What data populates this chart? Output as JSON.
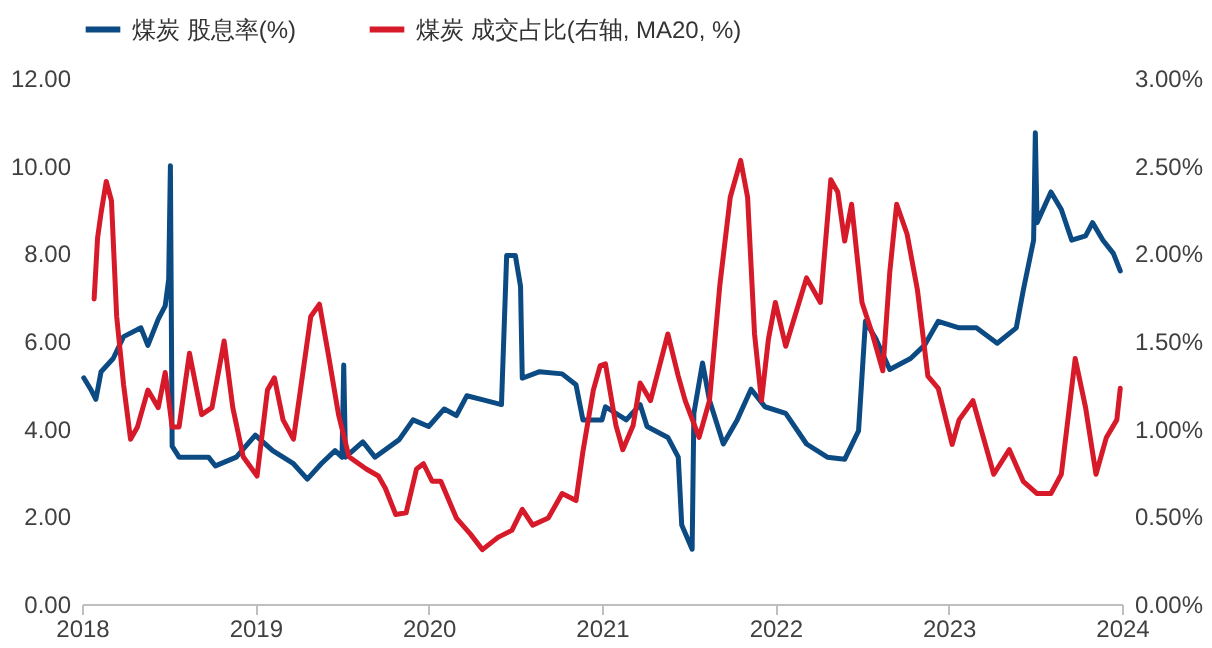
{
  "chart_data": {
    "type": "line",
    "legend": "top",
    "grid": false,
    "xlim": [
      2018,
      2024
    ],
    "xticks": [
      2018,
      2019,
      2020,
      2021,
      2022,
      2023,
      2024
    ],
    "ylim": [
      0,
      12
    ],
    "yticks": [
      {
        "value": 0,
        "label": "0.00"
      },
      {
        "value": 2,
        "label": "2.00"
      },
      {
        "value": 4,
        "label": "4.00"
      },
      {
        "value": 6,
        "label": "6.00"
      },
      {
        "value": 8,
        "label": "8.00"
      },
      {
        "value": 10,
        "label": "10.00"
      },
      {
        "value": 12,
        "label": "12.00"
      }
    ],
    "y2lim": [
      0,
      3
    ],
    "y2ticks": [
      {
        "value": 0,
        "label": "0.00%"
      },
      {
        "value": 0.5,
        "label": "0.50%"
      },
      {
        "value": 1,
        "label": "1.00%"
      },
      {
        "value": 1.5,
        "label": "1.50%"
      },
      {
        "value": 2,
        "label": "2.00%"
      },
      {
        "value": 2.5,
        "label": "2.50%"
      },
      {
        "value": 3,
        "label": "3.00%"
      }
    ],
    "series": [
      {
        "name": "煤炭 股息率(%)",
        "color": "#0b4a82",
        "x": [
          2018.01,
          2018.05,
          2018.08,
          2018.11,
          2018.18,
          2018.24,
          2018.34,
          2018.38,
          2018.44,
          2018.48,
          2018.5,
          2018.51,
          2018.52,
          2018.56,
          2018.73,
          2018.77,
          2018.89,
          2019.0,
          2019.1,
          2019.22,
          2019.3,
          2019.38,
          2019.46,
          2019.5,
          2019.51,
          2019.52,
          2019.62,
          2019.69,
          2019.83,
          2019.91,
          2020.0,
          2020.09,
          2020.16,
          2020.22,
          2020.32,
          2020.42,
          2020.45,
          2020.5,
          2020.53,
          2020.54,
          2020.64,
          2020.77,
          2020.85,
          2020.89,
          2021.0,
          2021.02,
          2021.14,
          2021.22,
          2021.26,
          2021.38,
          2021.44,
          2021.46,
          2021.52,
          2021.53,
          2021.58,
          2021.62,
          2021.7,
          2021.78,
          2021.86,
          2021.94,
          2022.06,
          2022.18,
          2022.3,
          2022.4,
          2022.48,
          2022.52,
          2022.58,
          2022.66,
          2022.78,
          2022.86,
          2022.94,
          2023.06,
          2023.16,
          2023.28,
          2023.39,
          2023.43,
          2023.49,
          2023.5,
          2023.51,
          2023.59,
          2023.65,
          2023.71,
          2023.79,
          2023.83,
          2023.89,
          2023.95,
          2023.99
        ],
        "values": [
          5.16,
          4.9,
          4.67,
          5.3,
          5.6,
          6.1,
          6.3,
          5.9,
          6.5,
          6.8,
          7.4,
          10.0,
          3.6,
          3.35,
          3.35,
          3.15,
          3.35,
          3.85,
          3.5,
          3.2,
          2.85,
          3.2,
          3.5,
          3.35,
          5.45,
          3.35,
          3.7,
          3.35,
          3.75,
          4.2,
          4.05,
          4.45,
          4.3,
          4.75,
          4.65,
          4.55,
          7.95,
          7.95,
          7.25,
          5.15,
          5.3,
          5.25,
          5.0,
          4.2,
          4.2,
          4.5,
          4.2,
          4.55,
          4.05,
          3.8,
          3.35,
          1.8,
          1.25,
          4.35,
          5.5,
          4.65,
          3.65,
          4.2,
          4.9,
          4.5,
          4.35,
          3.65,
          3.35,
          3.3,
          3.95,
          6.45,
          6.05,
          5.35,
          5.6,
          5.9,
          6.45,
          6.3,
          6.3,
          5.95,
          6.3,
          7.15,
          8.3,
          10.75,
          8.7,
          9.4,
          9.0,
          8.3,
          8.4,
          8.7,
          8.3,
          8.0,
          7.6
        ]
      },
      {
        "name": "煤炭 成交占比(右轴, MA20, %)",
        "color": "#d71a2a",
        "axis": "y2",
        "x": [
          2018.07,
          2018.09,
          2018.11,
          2018.14,
          2018.17,
          2018.2,
          2018.24,
          2018.28,
          2018.32,
          2018.38,
          2018.44,
          2018.48,
          2018.52,
          2018.56,
          2018.62,
          2018.69,
          2018.75,
          2018.82,
          2018.87,
          2018.93,
          2019.01,
          2019.07,
          2019.11,
          2019.16,
          2019.22,
          2019.26,
          2019.32,
          2019.37,
          2019.42,
          2019.48,
          2019.54,
          2019.64,
          2019.71,
          2019.75,
          2019.81,
          2019.87,
          2019.93,
          2019.97,
          2020.02,
          2020.07,
          2020.16,
          2020.24,
          2020.31,
          2020.4,
          2020.48,
          2020.54,
          2020.6,
          2020.69,
          2020.77,
          2020.85,
          2020.89,
          2020.95,
          2020.99,
          2021.02,
          2021.08,
          2021.12,
          2021.18,
          2021.22,
          2021.28,
          2021.38,
          2021.44,
          2021.48,
          2021.56,
          2021.62,
          2021.68,
          2021.74,
          2021.8,
          2021.84,
          2021.88,
          2021.92,
          2021.96,
          2022.0,
          2022.06,
          2022.18,
          2022.26,
          2022.32,
          2022.36,
          2022.4,
          2022.44,
          2022.5,
          2022.56,
          2022.62,
          2022.66,
          2022.7,
          2022.76,
          2022.82,
          2022.88,
          2022.94,
          2023.02,
          2023.06,
          2023.14,
          2023.2,
          2023.26,
          2023.35,
          2023.43,
          2023.51,
          2023.59,
          2023.65,
          2023.73,
          2023.79,
          2023.85,
          2023.91,
          2023.97,
          2023.99
        ],
        "values": [
          1.74,
          2.09,
          2.23,
          2.41,
          2.3,
          1.64,
          1.25,
          0.94,
          1.01,
          1.22,
          1.12,
          1.32,
          1.01,
          1.01,
          1.43,
          1.08,
          1.12,
          1.5,
          1.12,
          0.84,
          0.73,
          1.22,
          1.29,
          1.05,
          0.94,
          1.22,
          1.64,
          1.71,
          1.43,
          1.08,
          0.84,
          0.77,
          0.73,
          0.66,
          0.51,
          0.52,
          0.77,
          0.8,
          0.7,
          0.7,
          0.49,
          0.4,
          0.31,
          0.38,
          0.42,
          0.54,
          0.45,
          0.49,
          0.63,
          0.59,
          0.87,
          1.22,
          1.36,
          1.37,
          1.02,
          0.88,
          1.02,
          1.26,
          1.16,
          1.54,
          1.3,
          1.16,
          0.95,
          1.16,
          1.82,
          2.32,
          2.53,
          2.32,
          1.54,
          1.16,
          1.51,
          1.72,
          1.47,
          1.86,
          1.72,
          2.42,
          2.35,
          2.07,
          2.28,
          1.72,
          1.54,
          1.33,
          1.89,
          2.28,
          2.11,
          1.79,
          1.3,
          1.23,
          0.91,
          1.05,
          1.16,
          0.95,
          0.74,
          0.88,
          0.7,
          0.63,
          0.63,
          0.74,
          1.4,
          1.12,
          0.74,
          0.95,
          1.05,
          1.23
        ]
      }
    ]
  }
}
